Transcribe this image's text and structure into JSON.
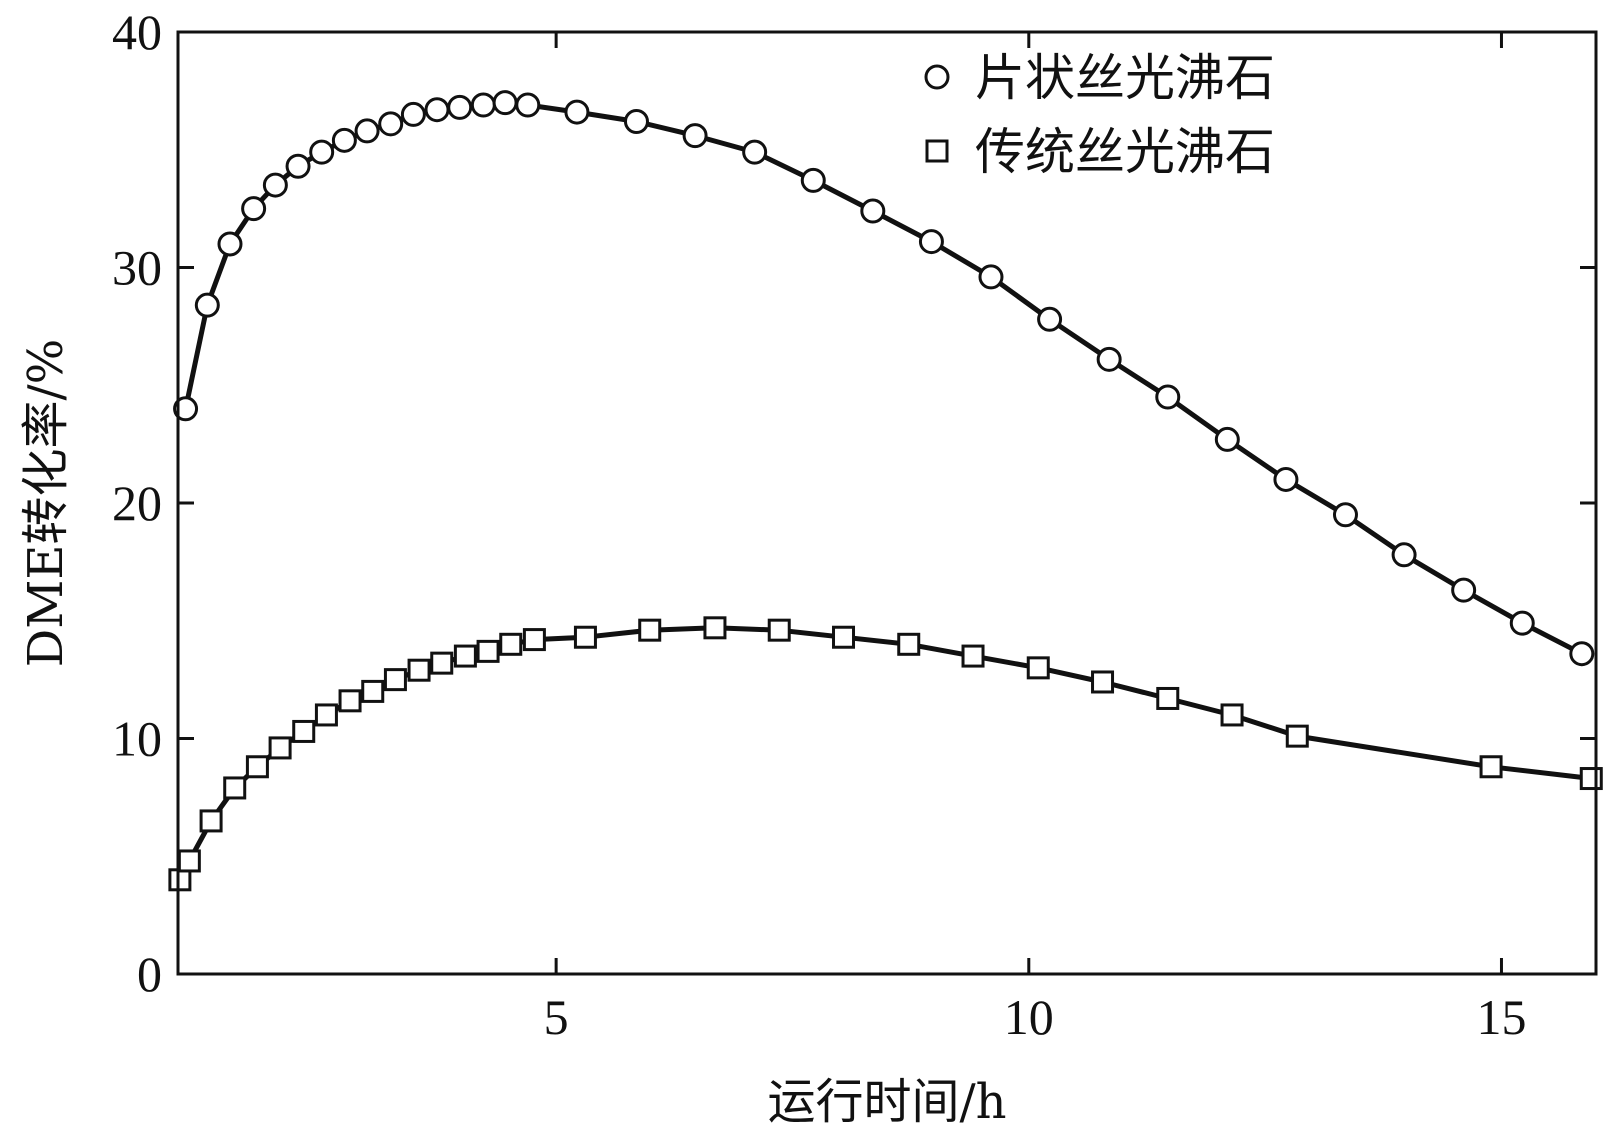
{
  "chart_data": {
    "type": "line",
    "title": "",
    "xlabel": "运行时间/h",
    "ylabel": "DME转化率/%",
    "xlim": [
      1,
      16
    ],
    "ylim": [
      0,
      40
    ],
    "x_ticks": [
      5,
      10,
      15
    ],
    "x_tick_labels": [
      "5",
      "10",
      "15"
    ],
    "y_ticks": [
      0,
      10,
      20,
      30,
      40
    ],
    "y_tick_labels": [
      "0",
      "10",
      "20",
      "30",
      "40"
    ],
    "grid": false,
    "legend_position": "top-right",
    "series": [
      {
        "name": "片状丝光沸石",
        "marker": "circle",
        "x": [
          1.08,
          1.31,
          1.55,
          1.8,
          2.03,
          2.27,
          2.52,
          2.76,
          3.0,
          3.25,
          3.49,
          3.74,
          3.98,
          4.23,
          4.46,
          4.7,
          5.22,
          5.85,
          6.47,
          7.1,
          7.72,
          8.35,
          8.97,
          9.6,
          10.22,
          10.85,
          11.47,
          12.1,
          12.72,
          13.35,
          13.97,
          14.6,
          15.22,
          15.85
        ],
        "y": [
          24.0,
          28.4,
          31.0,
          32.5,
          33.5,
          34.3,
          34.9,
          35.4,
          35.8,
          36.1,
          36.5,
          36.7,
          36.8,
          36.9,
          37.0,
          36.9,
          36.6,
          36.2,
          35.6,
          34.9,
          33.7,
          32.4,
          31.1,
          29.6,
          27.8,
          26.1,
          24.5,
          22.7,
          21.0,
          19.5,
          17.8,
          16.3,
          14.9,
          13.6
        ]
      },
      {
        "name": "传统丝光沸石",
        "marker": "square",
        "x": [
          1.02,
          1.12,
          1.35,
          1.6,
          1.84,
          2.08,
          2.33,
          2.57,
          2.82,
          3.06,
          3.3,
          3.55,
          3.79,
          4.04,
          4.28,
          4.52,
          4.77,
          5.31,
          5.99,
          6.68,
          7.36,
          8.04,
          8.73,
          9.41,
          10.1,
          10.78,
          11.47,
          12.15,
          12.84,
          14.89,
          15.95
        ],
        "y": [
          4.0,
          4.8,
          6.5,
          7.9,
          8.8,
          9.6,
          10.3,
          11.0,
          11.6,
          12.0,
          12.5,
          12.9,
          13.2,
          13.5,
          13.7,
          14.0,
          14.2,
          14.3,
          14.6,
          14.7,
          14.6,
          14.3,
          14.0,
          13.5,
          13.0,
          12.4,
          11.7,
          11.0,
          10.1,
          8.8,
          8.3
        ]
      }
    ]
  }
}
